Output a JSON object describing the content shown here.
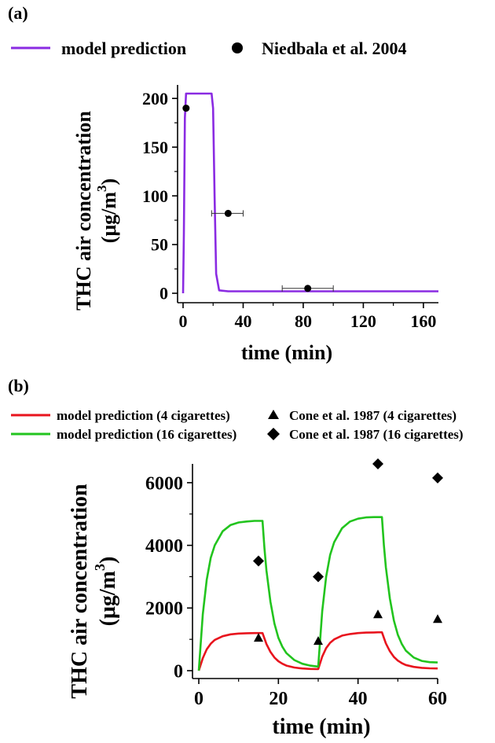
{
  "panel_a": {
    "label": "(a)",
    "legend": {
      "line_label": "model prediction",
      "marker_label": "Niedbala et al. 2004"
    },
    "ylabel_line1": "THC air concentration",
    "ylabel_line2": "(μg/m",
    "ylabel_sup": "3",
    "ylabel_close": ")",
    "xlabel": "time (min)"
  },
  "panel_b": {
    "label": "(b)",
    "legend": {
      "red_label": "model prediction (4 cigarettes)",
      "green_label": "model prediction (16 cigarettes)",
      "triangle_label": "Cone et al. 1987 (4 cigarettes)",
      "diamond_label": "Cone et al. 1987 (16 cigarettes)"
    },
    "ylabel_line1": "THC air concentration",
    "ylabel_line2": "(μg/m",
    "ylabel_sup": "3",
    "ylabel_close": ")",
    "xlabel": "time (min)"
  },
  "colors": {
    "purple": "#8a2be2",
    "red": "#e8141e",
    "green": "#22c41e",
    "black": "#000000"
  },
  "chart_data": [
    {
      "type": "line",
      "panel": "a",
      "xlim": [
        0,
        170
      ],
      "ylim": [
        0,
        205
      ],
      "xticks": [
        0,
        40,
        80,
        120,
        160
      ],
      "yticks": [
        0,
        50,
        100,
        150,
        200
      ],
      "series": [
        {
          "name": "model prediction",
          "kind": "line",
          "color": "#8a2be2",
          "x": [
            0,
            0.5,
            1.2,
            2,
            4,
            10,
            19,
            20,
            21,
            22,
            24,
            30,
            60,
            100,
            170
          ],
          "y": [
            0,
            60,
            180,
            205,
            205,
            205,
            205,
            190,
            100,
            20,
            3,
            2,
            2,
            2,
            2
          ]
        },
        {
          "name": "Niedbala et al. 2004",
          "kind": "scatter",
          "color": "#000000",
          "x": [
            2,
            30,
            83
          ],
          "y": [
            190,
            82,
            5
          ],
          "xerr_low": [
            1,
            11,
            17
          ],
          "xerr_high": [
            1,
            10,
            17
          ]
        }
      ]
    },
    {
      "type": "line",
      "panel": "b",
      "xlim": [
        0,
        60
      ],
      "ylim": [
        0,
        6600
      ],
      "xticks": [
        0,
        20,
        40,
        60
      ],
      "yticks": [
        0,
        2000,
        4000,
        6000
      ],
      "series": [
        {
          "name": "model prediction (4 cigarettes)",
          "kind": "line",
          "color": "#e8141e",
          "x": [
            0,
            1,
            2,
            3,
            4,
            6,
            8,
            10,
            12,
            14,
            15,
            16,
            17,
            18,
            19,
            20,
            21,
            22,
            24,
            26,
            28,
            29.9,
            30,
            31,
            32,
            33,
            34,
            36,
            38,
            40,
            42,
            44,
            45,
            46,
            47,
            48,
            49,
            50,
            51,
            52,
            54,
            56,
            58,
            60
          ],
          "y": [
            0,
            400,
            680,
            860,
            980,
            1100,
            1160,
            1185,
            1195,
            1200,
            1200,
            1200,
            850,
            600,
            420,
            300,
            220,
            160,
            100,
            70,
            55,
            50,
            50,
            450,
            720,
            890,
            1000,
            1120,
            1170,
            1200,
            1215,
            1220,
            1225,
            1225,
            870,
            620,
            440,
            320,
            240,
            180,
            120,
            90,
            75,
            70
          ]
        },
        {
          "name": "model prediction (16 cigarettes)",
          "kind": "line",
          "color": "#22c41e",
          "x": [
            0,
            1,
            2,
            3,
            4,
            6,
            8,
            10,
            12,
            14,
            15,
            16,
            16.5,
            17,
            18,
            19,
            20,
            21,
            22,
            24,
            26,
            28,
            29.9,
            30,
            31,
            32,
            33,
            34,
            36,
            38,
            40,
            42,
            44,
            45,
            46,
            46.5,
            47,
            48,
            49,
            50,
            51,
            52,
            54,
            56,
            58,
            60
          ],
          "y": [
            0,
            1800,
            2900,
            3600,
            4000,
            4450,
            4650,
            4730,
            4760,
            4780,
            4780,
            4780,
            3900,
            3200,
            2200,
            1500,
            1050,
            760,
            560,
            340,
            220,
            160,
            130,
            130,
            1900,
            3000,
            3700,
            4100,
            4550,
            4760,
            4850,
            4890,
            4900,
            4900,
            4900,
            4000,
            3300,
            2300,
            1600,
            1150,
            850,
            640,
            420,
            310,
            270,
            260
          ]
        },
        {
          "name": "Cone et al. 1987 (4 cigarettes)",
          "kind": "scatter",
          "marker": "triangle",
          "color": "#000000",
          "x": [
            15,
            30,
            45,
            60
          ],
          "y": [
            1050,
            950,
            1800,
            1650
          ]
        },
        {
          "name": "Cone et al. 1987 (16 cigarettes)",
          "kind": "scatter",
          "marker": "diamond",
          "color": "#000000",
          "x": [
            15,
            30,
            45,
            60
          ],
          "y": [
            3500,
            3000,
            6600,
            6150
          ]
        }
      ]
    }
  ]
}
